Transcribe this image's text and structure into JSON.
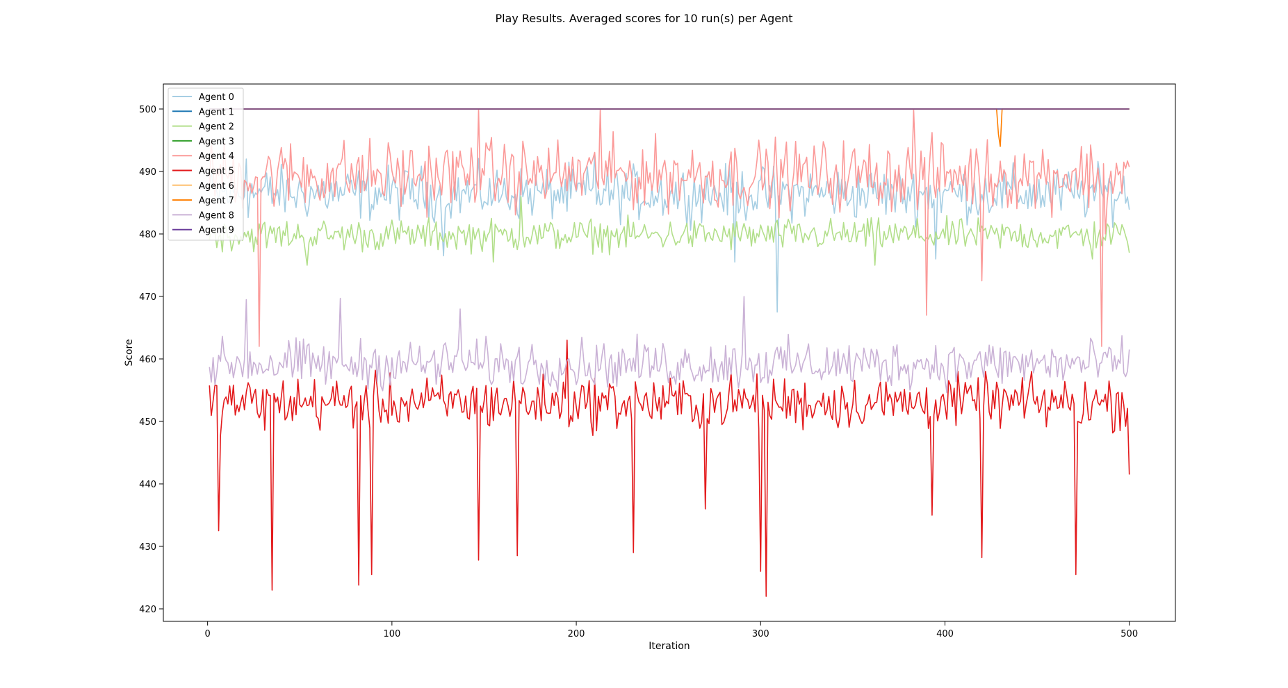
{
  "chart_data": {
    "type": "line",
    "title": "Play Results. Averaged scores for 10 run(s) per Agent",
    "xlabel": "Iteration",
    "ylabel": "Score",
    "xlim": [
      -24,
      525
    ],
    "ylim": [
      418,
      504
    ],
    "xticks": [
      0,
      100,
      200,
      300,
      400,
      500
    ],
    "yticks": [
      420,
      430,
      440,
      450,
      460,
      470,
      480,
      490,
      500
    ],
    "grid": false,
    "legend_position": "top-left",
    "x_range": [
      1,
      500
    ],
    "series": [
      {
        "name": "Agent 0",
        "color": "#a6cee3",
        "summary": {
          "typical_min": 482,
          "typical_max": 492,
          "mean": 486.5
        },
        "notable": [
          [
            309,
            467.5
          ],
          [
            286,
            475.5
          ],
          [
            128,
            476.5
          ],
          [
            395,
            476.0
          ],
          [
            21,
            492.0
          ],
          [
            210,
            493.0
          ]
        ]
      },
      {
        "name": "Agent 1",
        "color": "#1f78b4",
        "values": [
          [
            1,
            500
          ],
          [
            500,
            500
          ]
        ]
      },
      {
        "name": "Agent 2",
        "color": "#b2df8a",
        "summary": {
          "typical_min": 477,
          "typical_max": 483,
          "mean": 479.8
        },
        "notable": [
          [
            54,
            475.0
          ],
          [
            155,
            475.5
          ],
          [
            170,
            486.0
          ],
          [
            362,
            475.0
          ],
          [
            480,
            476.0
          ],
          [
            500,
            477.0
          ]
        ]
      },
      {
        "name": "Agent 3",
        "color": "#33a02c",
        "values": [
          [
            1,
            500
          ],
          [
            500,
            500
          ]
        ]
      },
      {
        "name": "Agent 4",
        "color": "#fb9a99",
        "summary": {
          "typical_min": 484,
          "typical_max": 497,
          "mean": 489.5
        },
        "notable": [
          [
            28,
            462.0
          ],
          [
            147,
            500.0
          ],
          [
            213,
            500.0
          ],
          [
            383,
            500.0
          ],
          [
            390,
            467.0
          ],
          [
            420,
            472.5
          ],
          [
            485,
            462.0
          ],
          [
            487,
            480.0
          ]
        ]
      },
      {
        "name": "Agent 5",
        "color": "#e31a1c",
        "summary": {
          "typical_min": 448,
          "typical_max": 458,
          "mean": 453.0
        },
        "notable": [
          [
            6,
            432.5
          ],
          [
            35,
            423.0
          ],
          [
            82,
            423.8
          ],
          [
            89,
            425.5
          ],
          [
            147,
            427.8
          ],
          [
            168,
            428.5
          ],
          [
            195,
            463.0
          ],
          [
            231,
            429.0
          ],
          [
            270,
            436.0
          ],
          [
            300,
            426.0
          ],
          [
            303,
            422.0
          ],
          [
            393,
            435.0
          ],
          [
            420,
            428.2
          ],
          [
            471,
            425.5
          ],
          [
            500,
            441.5
          ]
        ]
      },
      {
        "name": "Agent 6",
        "color": "#fdbf6f",
        "values": [
          [
            1,
            500
          ],
          [
            500,
            500
          ]
        ]
      },
      {
        "name": "Agent 7",
        "color": "#ff7f00",
        "values": [
          [
            1,
            500
          ],
          [
            428,
            500
          ],
          [
            429,
            496
          ],
          [
            430,
            494
          ],
          [
            431,
            500
          ],
          [
            500,
            500
          ]
        ]
      },
      {
        "name": "Agent 8",
        "color": "#cab2d6",
        "summary": {
          "typical_min": 455,
          "typical_max": 464,
          "mean": 459.2
        },
        "notable": [
          [
            21,
            469.5
          ],
          [
            72,
            469.7
          ],
          [
            137,
            468.0
          ],
          [
            291,
            470.0
          ],
          [
            1,
            458.7
          ],
          [
            500,
            461.5
          ]
        ]
      },
      {
        "name": "Agent 9",
        "color": "#6a3d9a",
        "values": [
          [
            1,
            500
          ],
          [
            500,
            500
          ]
        ]
      }
    ]
  }
}
